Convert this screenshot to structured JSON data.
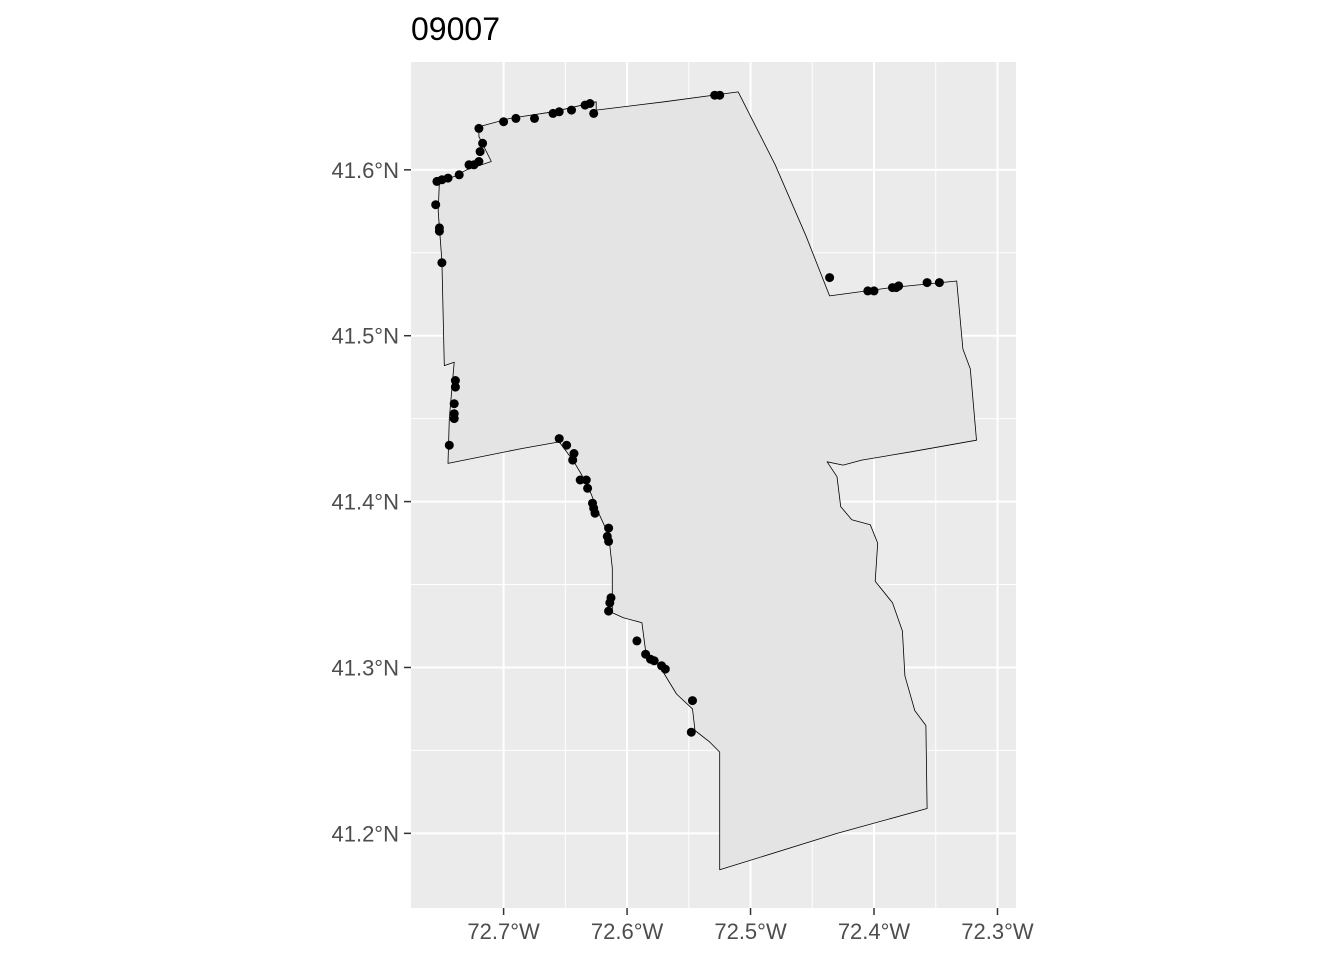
{
  "chart_data": {
    "type": "scatter",
    "title": "09007",
    "xlabel": "",
    "ylabel": "",
    "xlim": [
      -72.775,
      -72.285
    ],
    "ylim": [
      41.155,
      41.665
    ],
    "grid": true,
    "legend": "none",
    "x_ticks": [
      {
        "value": -72.7,
        "label": "72.7°W"
      },
      {
        "value": -72.6,
        "label": "72.6°W"
      },
      {
        "value": -72.5,
        "label": "72.5°W"
      },
      {
        "value": -72.4,
        "label": "72.4°W"
      },
      {
        "value": -72.3,
        "label": "72.3°W"
      }
    ],
    "y_ticks": [
      {
        "value": 41.2,
        "label": "41.2°N"
      },
      {
        "value": 41.3,
        "label": "41.3°N"
      },
      {
        "value": 41.4,
        "label": "41.4°N"
      },
      {
        "value": 41.5,
        "label": "41.5°N"
      },
      {
        "value": 41.6,
        "label": "41.6°N"
      }
    ],
    "colors": {
      "panel": "#ebebeb",
      "grid": "#ffffff",
      "polygon_fill": "#e4e4e4",
      "polygon_stroke": "#000000",
      "points": "#000000"
    },
    "boundary": [
      [
        -72.51,
        41.647
      ],
      [
        -72.48,
        41.603
      ],
      [
        -72.455,
        41.56
      ],
      [
        -72.436,
        41.524
      ],
      [
        -72.386,
        41.529
      ],
      [
        -72.333,
        41.533
      ],
      [
        -72.328,
        41.492
      ],
      [
        -72.322,
        41.48
      ],
      [
        -72.317,
        41.437
      ],
      [
        -72.37,
        41.43
      ],
      [
        -72.41,
        41.425
      ],
      [
        -72.425,
        41.422
      ],
      [
        -72.438,
        41.424
      ],
      [
        -72.43,
        41.415
      ],
      [
        -72.427,
        41.397
      ],
      [
        -72.418,
        41.389
      ],
      [
        -72.403,
        41.386
      ],
      [
        -72.397,
        41.375
      ],
      [
        -72.399,
        41.352
      ],
      [
        -72.385,
        41.339
      ],
      [
        -72.377,
        41.322
      ],
      [
        -72.375,
        41.295
      ],
      [
        -72.367,
        41.274
      ],
      [
        -72.358,
        41.265
      ],
      [
        -72.357,
        41.215
      ],
      [
        -72.43,
        41.2
      ],
      [
        -72.525,
        41.178
      ],
      [
        -72.525,
        41.249
      ],
      [
        -72.533,
        41.255
      ],
      [
        -72.545,
        41.262
      ],
      [
        -72.547,
        41.275
      ],
      [
        -72.56,
        41.284
      ],
      [
        -72.573,
        41.3
      ],
      [
        -72.585,
        41.31
      ],
      [
        -72.588,
        41.327
      ],
      [
        -72.603,
        41.33
      ],
      [
        -72.612,
        41.333
      ],
      [
        -72.612,
        41.36
      ],
      [
        -72.615,
        41.38
      ],
      [
        -72.623,
        41.393
      ],
      [
        -72.632,
        41.41
      ],
      [
        -72.643,
        41.424
      ],
      [
        -72.655,
        41.436
      ],
      [
        -72.685,
        41.432
      ],
      [
        -72.745,
        41.423
      ],
      [
        -72.744,
        41.45
      ],
      [
        -72.74,
        41.484
      ],
      [
        -72.748,
        41.482
      ],
      [
        -72.75,
        41.545
      ],
      [
        -72.753,
        41.575
      ],
      [
        -72.752,
        41.593
      ],
      [
        -72.74,
        41.596
      ],
      [
        -72.73,
        41.6
      ],
      [
        -72.71,
        41.605
      ],
      [
        -72.72,
        41.62
      ],
      [
        -72.72,
        41.626
      ],
      [
        -72.695,
        41.631
      ],
      [
        -72.66,
        41.635
      ],
      [
        -72.625,
        41.641
      ],
      [
        -72.625,
        41.636
      ],
      [
        -72.57,
        41.641
      ],
      [
        -72.51,
        41.647
      ]
    ],
    "points": [
      [
        -72.529,
        41.645
      ],
      [
        -72.525,
        41.645
      ],
      [
        -72.63,
        41.64
      ],
      [
        -72.634,
        41.639
      ],
      [
        -72.627,
        41.634
      ],
      [
        -72.645,
        41.636
      ],
      [
        -72.655,
        41.635
      ],
      [
        -72.66,
        41.634
      ],
      [
        -72.675,
        41.631
      ],
      [
        -72.69,
        41.631
      ],
      [
        -72.7,
        41.629
      ],
      [
        -72.72,
        41.625
      ],
      [
        -72.717,
        41.616
      ],
      [
        -72.719,
        41.611
      ],
      [
        -72.72,
        41.605
      ],
      [
        -72.724,
        41.603
      ],
      [
        -72.728,
        41.603
      ],
      [
        -72.736,
        41.597
      ],
      [
        -72.745,
        41.595
      ],
      [
        -72.75,
        41.594
      ],
      [
        -72.754,
        41.593
      ],
      [
        -72.755,
        41.579
      ],
      [
        -72.752,
        41.565
      ],
      [
        -72.752,
        41.563
      ],
      [
        -72.75,
        41.544
      ],
      [
        -72.739,
        41.473
      ],
      [
        -72.739,
        41.469
      ],
      [
        -72.74,
        41.459
      ],
      [
        -72.74,
        41.453
      ],
      [
        -72.74,
        41.45
      ],
      [
        -72.744,
        41.434
      ],
      [
        -72.655,
        41.438
      ],
      [
        -72.649,
        41.434
      ],
      [
        -72.643,
        41.429
      ],
      [
        -72.644,
        41.425
      ],
      [
        -72.638,
        41.413
      ],
      [
        -72.633,
        41.413
      ],
      [
        -72.632,
        41.408
      ],
      [
        -72.628,
        41.399
      ],
      [
        -72.627,
        41.396
      ],
      [
        -72.626,
        41.393
      ],
      [
        -72.615,
        41.384
      ],
      [
        -72.616,
        41.379
      ],
      [
        -72.615,
        41.376
      ],
      [
        -72.613,
        41.342
      ],
      [
        -72.614,
        41.339
      ],
      [
        -72.615,
        41.334
      ],
      [
        -72.592,
        41.316
      ],
      [
        -72.585,
        41.308
      ],
      [
        -72.581,
        41.305
      ],
      [
        -72.578,
        41.304
      ],
      [
        -72.572,
        41.301
      ],
      [
        -72.569,
        41.299
      ],
      [
        -72.547,
        41.28
      ],
      [
        -72.548,
        41.261
      ],
      [
        -72.436,
        41.535
      ],
      [
        -72.405,
        41.527
      ],
      [
        -72.4,
        41.527
      ],
      [
        -72.385,
        41.529
      ],
      [
        -72.382,
        41.529
      ],
      [
        -72.38,
        41.53
      ],
      [
        -72.357,
        41.532
      ],
      [
        -72.347,
        41.532
      ]
    ]
  }
}
